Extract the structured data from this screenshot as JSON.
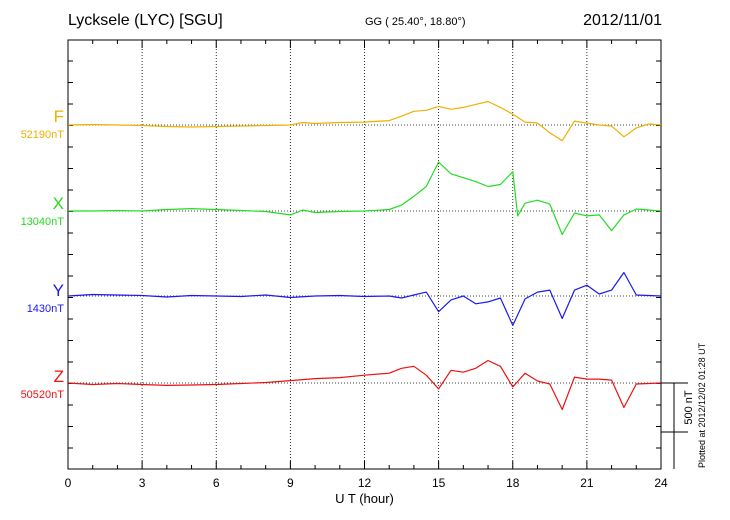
{
  "header": {
    "station": "Lycksele (LYC)  [SGU]",
    "coords": "GG ( 25.40°,  18.80°)",
    "date": "2012/11/01"
  },
  "plotted_note": "Plotted at 2012/12/02 01:28 UT",
  "scale_label": "500 nT",
  "chart_data": {
    "type": "line",
    "title": "Lycksele (LYC)  [SGU]",
    "xlabel": "U T (hour)",
    "ylabel": "",
    "xlim": [
      0,
      24
    ],
    "xticks": [
      0,
      3,
      6,
      9,
      12,
      15,
      18,
      21,
      24
    ],
    "grid": true,
    "scale_bar_nT": 500,
    "series": [
      {
        "name": "F",
        "baseline": "52190nT",
        "color": "#f0b000",
        "points": [
          [
            0,
            0
          ],
          [
            1,
            5
          ],
          [
            2,
            0
          ],
          [
            3,
            -5
          ],
          [
            4,
            -15
          ],
          [
            5,
            -20
          ],
          [
            6,
            -15
          ],
          [
            7,
            -10
          ],
          [
            8,
            -5
          ],
          [
            9,
            0
          ],
          [
            9.5,
            25
          ],
          [
            10,
            15
          ],
          [
            11,
            25
          ],
          [
            12,
            30
          ],
          [
            13,
            45
          ],
          [
            13.5,
            90
          ],
          [
            14,
            140
          ],
          [
            14.5,
            150
          ],
          [
            15,
            190
          ],
          [
            15.5,
            160
          ],
          [
            16,
            180
          ],
          [
            16.5,
            210
          ],
          [
            17,
            240
          ],
          [
            17.5,
            180
          ],
          [
            18,
            110
          ],
          [
            18.5,
            30
          ],
          [
            19,
            20
          ],
          [
            19.5,
            -80
          ],
          [
            20,
            -160
          ],
          [
            20.5,
            40
          ],
          [
            21,
            20
          ],
          [
            21.5,
            0
          ],
          [
            22,
            -10
          ],
          [
            22.5,
            -120
          ],
          [
            23,
            -30
          ],
          [
            23.5,
            10
          ],
          [
            24,
            0
          ]
        ]
      },
      {
        "name": "X",
        "baseline": "13040nT",
        "color": "#22dd22",
        "points": [
          [
            0,
            0
          ],
          [
            1,
            0
          ],
          [
            2,
            5
          ],
          [
            3,
            0
          ],
          [
            4,
            15
          ],
          [
            5,
            25
          ],
          [
            6,
            15
          ],
          [
            7,
            5
          ],
          [
            8,
            -5
          ],
          [
            9,
            -40
          ],
          [
            9.5,
            10
          ],
          [
            10,
            -15
          ],
          [
            11,
            -5
          ],
          [
            12,
            0
          ],
          [
            13,
            15
          ],
          [
            13.5,
            60
          ],
          [
            14,
            150
          ],
          [
            14.5,
            250
          ],
          [
            15,
            500
          ],
          [
            15.5,
            380
          ],
          [
            16,
            340
          ],
          [
            16.5,
            300
          ],
          [
            17,
            250
          ],
          [
            17.5,
            270
          ],
          [
            18,
            400
          ],
          [
            18.2,
            -50
          ],
          [
            18.5,
            80
          ],
          [
            19,
            110
          ],
          [
            19.5,
            70
          ],
          [
            20,
            -240
          ],
          [
            20.5,
            -20
          ],
          [
            21,
            -50
          ],
          [
            21.5,
            -40
          ],
          [
            22,
            -200
          ],
          [
            22.5,
            -40
          ],
          [
            23,
            20
          ],
          [
            24,
            0
          ]
        ]
      },
      {
        "name": "Y",
        "baseline": "1430nT",
        "color": "#1a1aee",
        "points": [
          [
            0,
            0
          ],
          [
            1,
            15
          ],
          [
            2,
            10
          ],
          [
            3,
            5
          ],
          [
            4,
            -10
          ],
          [
            5,
            5
          ],
          [
            6,
            0
          ],
          [
            7,
            -5
          ],
          [
            8,
            10
          ],
          [
            9,
            -15
          ],
          [
            10,
            0
          ],
          [
            11,
            5
          ],
          [
            12,
            -5
          ],
          [
            13,
            0
          ],
          [
            13.5,
            -20
          ],
          [
            14,
            10
          ],
          [
            14.5,
            40
          ],
          [
            15,
            -160
          ],
          [
            15.5,
            -40
          ],
          [
            16,
            0
          ],
          [
            16.5,
            -80
          ],
          [
            17,
            -60
          ],
          [
            17.5,
            -20
          ],
          [
            18,
            -300
          ],
          [
            18.5,
            -30
          ],
          [
            19,
            40
          ],
          [
            19.5,
            60
          ],
          [
            20,
            -230
          ],
          [
            20.5,
            60
          ],
          [
            21,
            110
          ],
          [
            21.5,
            20
          ],
          [
            22,
            60
          ],
          [
            22.5,
            240
          ],
          [
            23,
            10
          ],
          [
            24,
            0
          ]
        ]
      },
      {
        "name": "Z",
        "baseline": "50520nT",
        "color": "#ee1111",
        "points": [
          [
            0,
            0
          ],
          [
            1,
            -15
          ],
          [
            2,
            -5
          ],
          [
            3,
            -15
          ],
          [
            4,
            -25
          ],
          [
            5,
            -20
          ],
          [
            6,
            -15
          ],
          [
            7,
            -5
          ],
          [
            8,
            5
          ],
          [
            9,
            25
          ],
          [
            10,
            45
          ],
          [
            11,
            55
          ],
          [
            12,
            80
          ],
          [
            13,
            100
          ],
          [
            13.5,
            150
          ],
          [
            14,
            170
          ],
          [
            14.5,
            80
          ],
          [
            15,
            -60
          ],
          [
            15.5,
            130
          ],
          [
            16,
            110
          ],
          [
            16.5,
            150
          ],
          [
            17,
            230
          ],
          [
            17.5,
            170
          ],
          [
            18,
            -40
          ],
          [
            18.5,
            100
          ],
          [
            19,
            20
          ],
          [
            19.5,
            -10
          ],
          [
            20,
            -270
          ],
          [
            20.5,
            60
          ],
          [
            21,
            40
          ],
          [
            21.5,
            40
          ],
          [
            22,
            30
          ],
          [
            22.5,
            -250
          ],
          [
            23,
            -10
          ],
          [
            24,
            0
          ]
        ]
      }
    ]
  }
}
